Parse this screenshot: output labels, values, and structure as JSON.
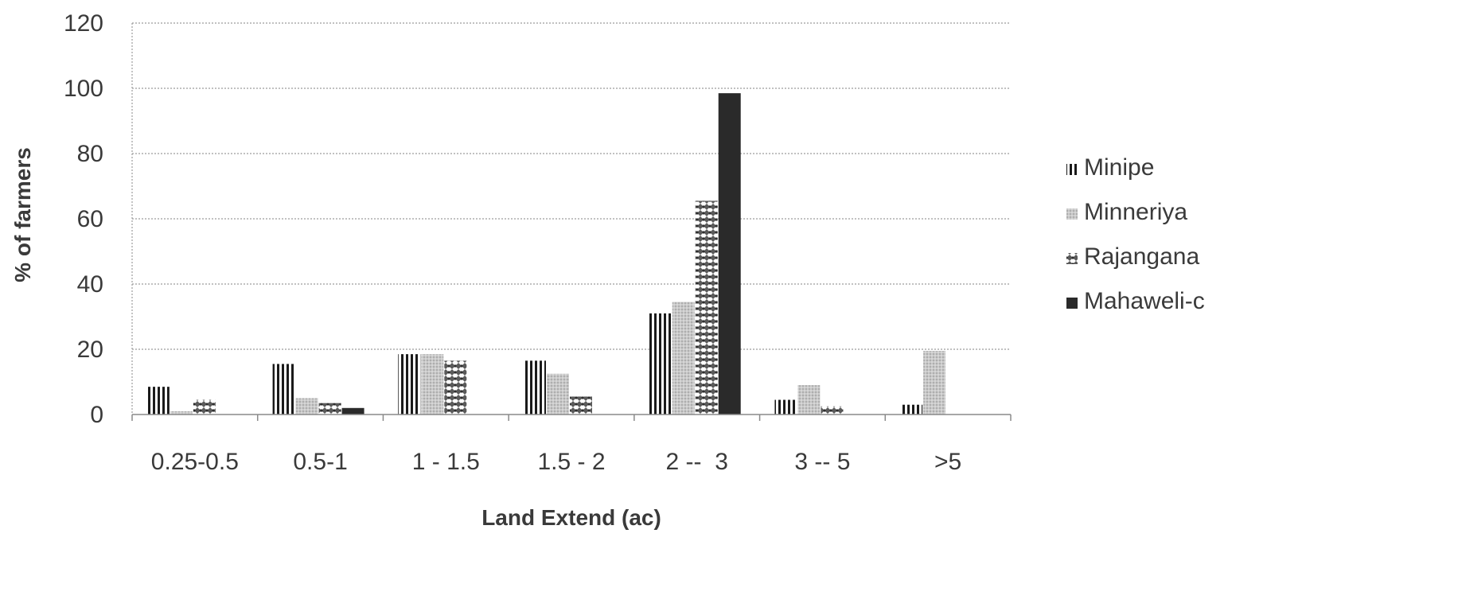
{
  "chart_data": {
    "type": "bar",
    "title": "",
    "xlabel": "Land Extend (ac)",
    "ylabel": "% of farmers",
    "ylim": [
      0,
      120
    ],
    "yticks": [
      0,
      20,
      40,
      60,
      80,
      100,
      120
    ],
    "grid": true,
    "legend_position": "right",
    "categories": [
      "0.25-0.5",
      "0.5-1",
      "1 - 1.5",
      "1.5 - 2",
      "2 --  3",
      "3 -- 5",
      ">5"
    ],
    "series": [
      {
        "name": "Minipe",
        "pattern": "vertical-stripes",
        "color": "#1a1a1a",
        "values": [
          8.5,
          15.5,
          18.5,
          16.5,
          31,
          4.5,
          3
        ]
      },
      {
        "name": "Minneriya",
        "pattern": "light-dots",
        "color": "#bdbdbd",
        "values": [
          1,
          5,
          18.5,
          12.5,
          34.5,
          9,
          19.5
        ]
      },
      {
        "name": "Rajangana",
        "pattern": "checker",
        "color": "#777777",
        "values": [
          4.5,
          3.5,
          16.5,
          5.5,
          65.5,
          2.5,
          0
        ]
      },
      {
        "name": "Mahaweli-c",
        "pattern": "solid",
        "color": "#2a2a2a",
        "values": [
          0,
          2,
          0,
          0,
          98.5,
          0,
          0
        ]
      }
    ]
  }
}
